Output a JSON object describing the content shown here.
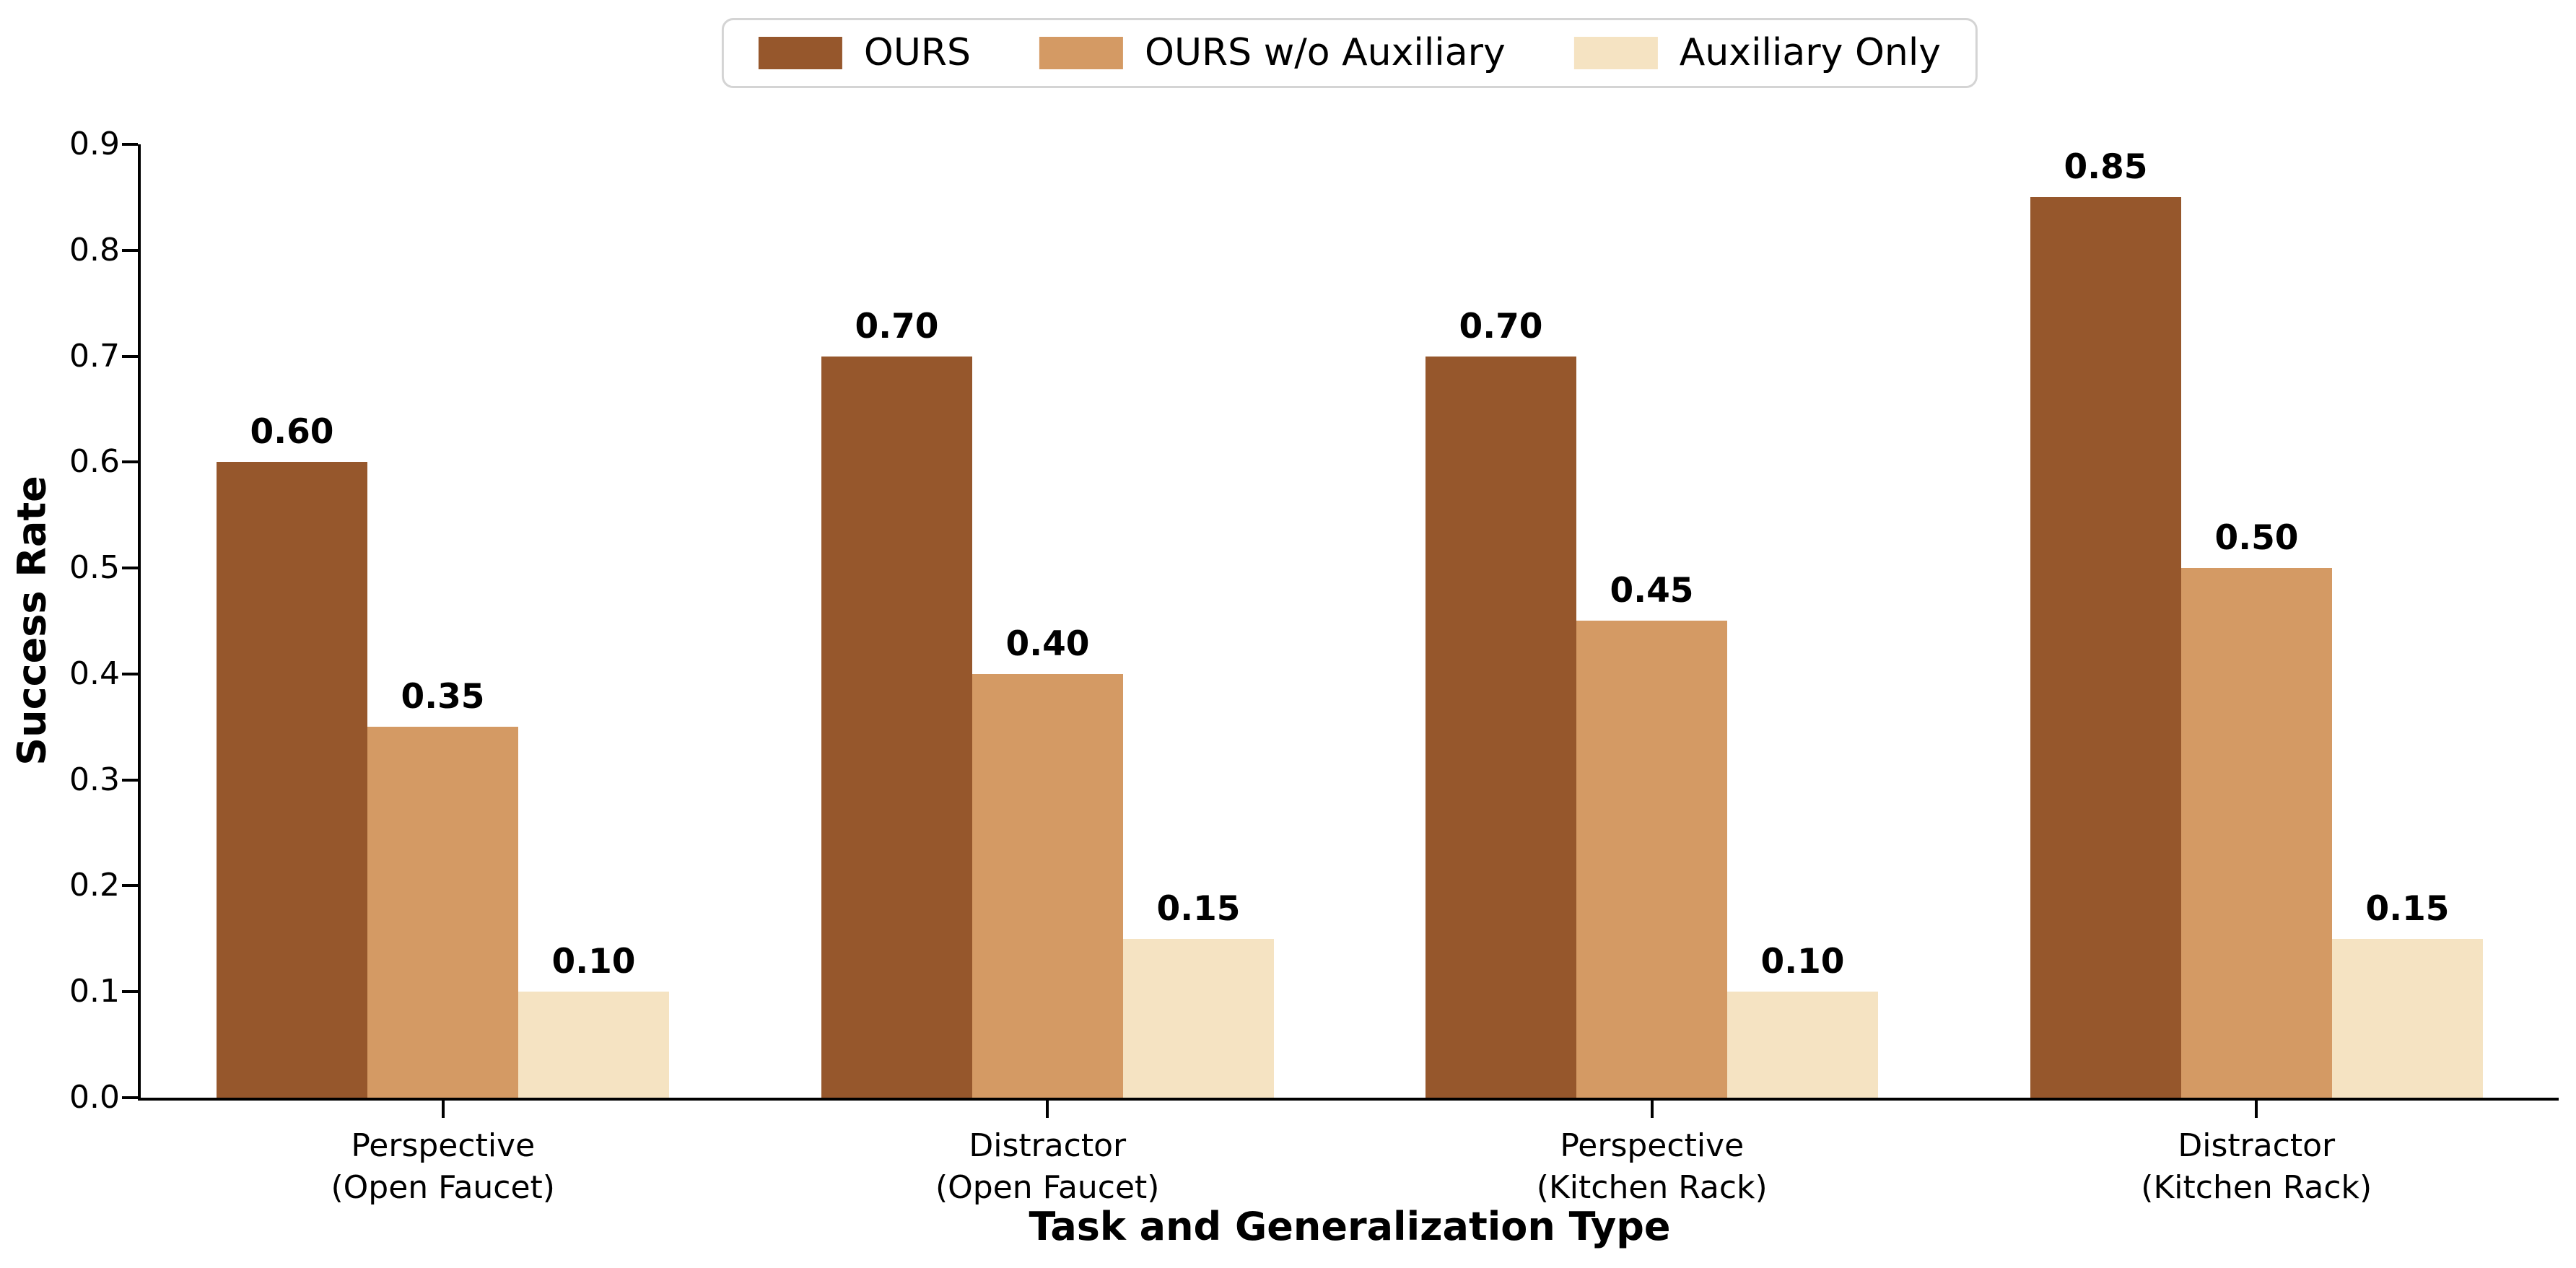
{
  "chart_data": {
    "type": "bar",
    "title": "",
    "xlabel": "Task and Generalization Type",
    "ylabel": "Success Rate",
    "ylim": [
      0.0,
      0.9
    ],
    "yticks": [
      "0.0",
      "0.1",
      "0.2",
      "0.3",
      "0.4",
      "0.5",
      "0.6",
      "0.7",
      "0.8",
      "0.9"
    ],
    "grid": false,
    "legend_position": "top-center",
    "categories": [
      "Perspective\n(Open Faucet)",
      "Distractor\n(Open Faucet)",
      "Perspective\n(Kitchen Rack)",
      "Distractor\n(Kitchen Rack)"
    ],
    "series": [
      {
        "name": "OURS",
        "color": "#96572C",
        "values": [
          0.6,
          0.7,
          0.7,
          0.85
        ]
      },
      {
        "name": "OURS w/o Auxiliary",
        "color": "#D49A64",
        "values": [
          0.35,
          0.4,
          0.45,
          0.5
        ]
      },
      {
        "name": "Auxiliary Only",
        "color": "#F5E3C2",
        "values": [
          0.1,
          0.15,
          0.1,
          0.15
        ]
      }
    ],
    "bar_value_labels": [
      [
        "0.60",
        "0.70",
        "0.70",
        "0.85"
      ],
      [
        "0.35",
        "0.40",
        "0.45",
        "0.50"
      ],
      [
        "0.10",
        "0.15",
        "0.10",
        "0.15"
      ]
    ],
    "axis_color": "#000000"
  }
}
